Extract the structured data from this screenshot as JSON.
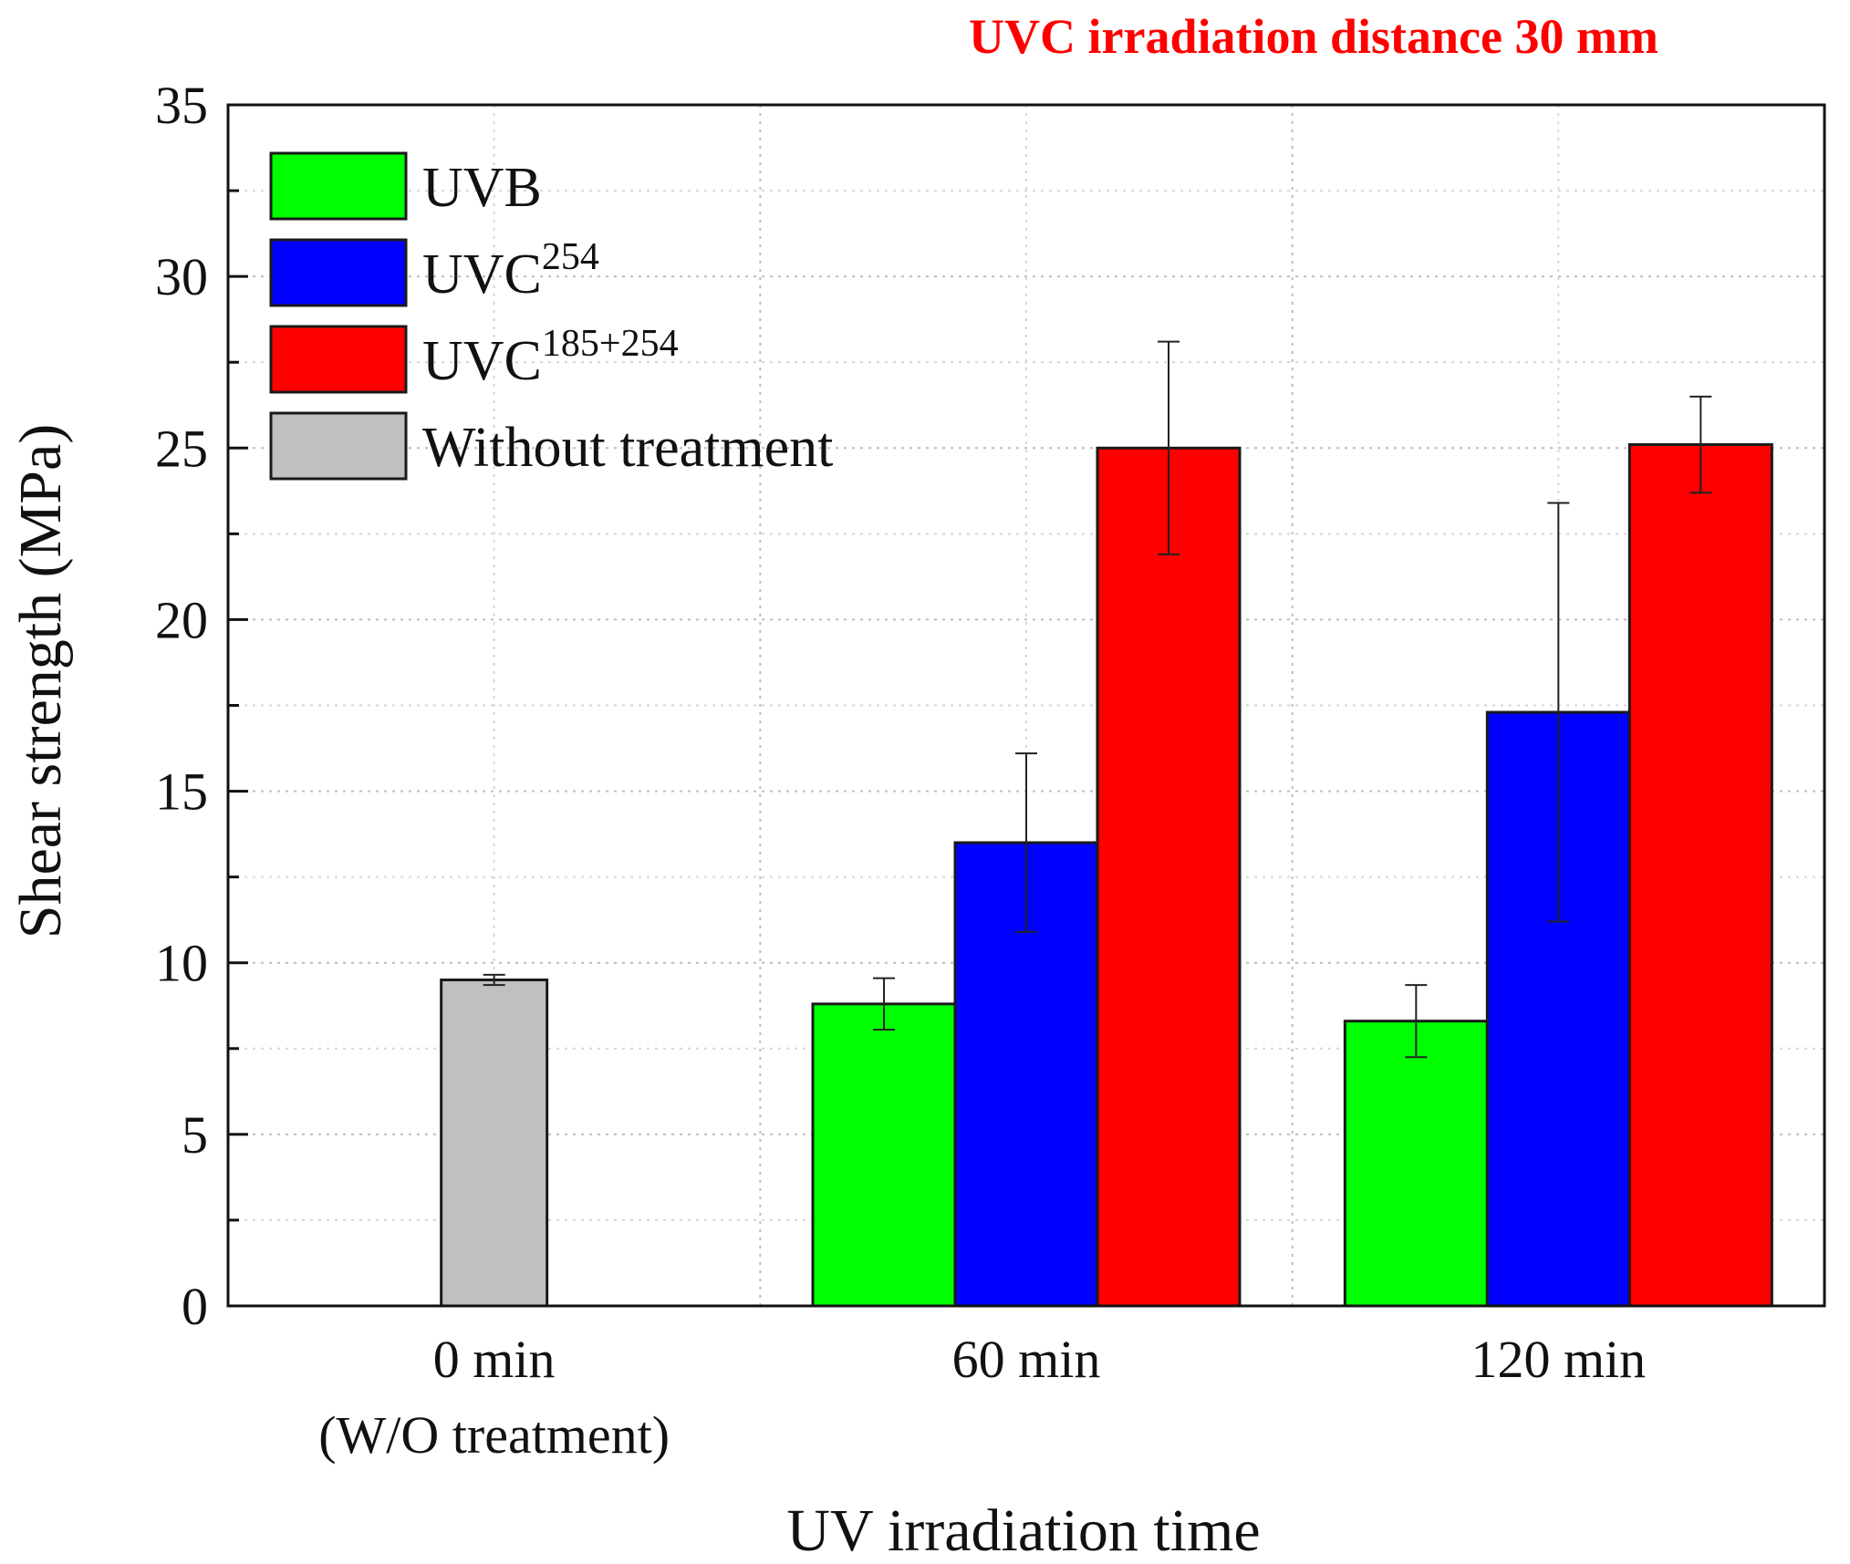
{
  "chart_data": {
    "type": "bar",
    "title": "UVC irradiation distance 30 mm",
    "title_color": "#ff0000",
    "xlabel": "UV irradiation time",
    "ylabel": "Shear strength (MPa)",
    "ylim": [
      0,
      35
    ],
    "yticks": [
      0,
      5,
      10,
      15,
      20,
      25,
      30,
      35
    ],
    "grid": true,
    "legend_position": "top-left",
    "categories": [
      {
        "label": "0 min",
        "sublabel": "(W/O treatment)"
      },
      {
        "label": "60 min",
        "sublabel": ""
      },
      {
        "label": "120 min",
        "sublabel": ""
      }
    ],
    "series": [
      {
        "name": "UVB",
        "base": "UVB",
        "sup": "",
        "color": "#00ff00",
        "values": [
          null,
          8.8,
          8.3
        ],
        "errors": [
          null,
          0.75,
          1.05
        ]
      },
      {
        "name": "UVC254",
        "base": "UVC",
        "sup": "254",
        "color": "#0000ff",
        "values": [
          null,
          13.5,
          17.3
        ],
        "errors": [
          null,
          2.6,
          6.1
        ]
      },
      {
        "name": "UVC185+254",
        "base": "UVC",
        "sup": "185+254",
        "color": "#ff0000",
        "values": [
          null,
          25.0,
          25.1
        ],
        "errors": [
          null,
          3.1,
          1.4
        ]
      },
      {
        "name": "Without treatment",
        "base": "Without  treatment",
        "sup": "",
        "color": "#c0c0c0",
        "values": [
          9.5,
          null,
          null
        ],
        "errors": [
          0.15,
          null,
          null
        ]
      }
    ]
  }
}
